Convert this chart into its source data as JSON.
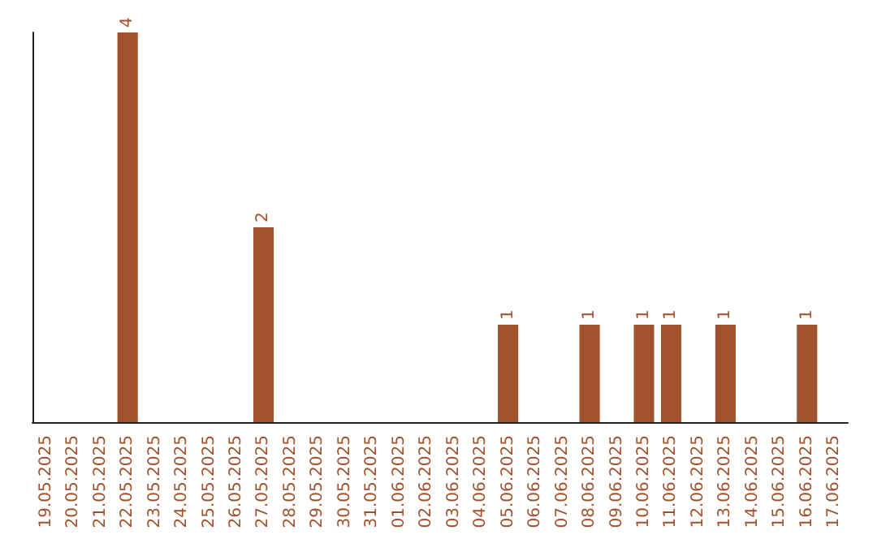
{
  "chart_data": {
    "type": "bar",
    "categories": [
      "19.05.2025",
      "20.05.2025",
      "21.05.2025",
      "22.05.2025",
      "23.05.2025",
      "24.05.2025",
      "25.05.2025",
      "26.05.2025",
      "27.05.2025",
      "28.05.2025",
      "29.05.2025",
      "30.05.2025",
      "31.05.2025",
      "01.06.2025",
      "02.06.2025",
      "03.06.2025",
      "04.06.2025",
      "05.06.2025",
      "06.06.2025",
      "07.06.2025",
      "08.06.2025",
      "09.06.2025",
      "10.06.2025",
      "11.06.2025",
      "12.06.2025",
      "13.06.2025",
      "14.06.2025",
      "15.06.2025",
      "16.06.2025",
      "17.06.2025"
    ],
    "values": [
      0,
      0,
      0,
      4,
      0,
      0,
      0,
      0,
      2,
      0,
      0,
      0,
      0,
      0,
      0,
      0,
      0,
      1,
      0,
      0,
      1,
      0,
      1,
      1,
      0,
      1,
      0,
      0,
      1,
      0
    ],
    "value_labels": [
      null,
      null,
      null,
      "4",
      null,
      null,
      null,
      null,
      "2",
      null,
      null,
      null,
      null,
      null,
      null,
      null,
      null,
      "1",
      null,
      null,
      "1",
      null,
      "1",
      "1",
      null,
      "1",
      null,
      null,
      "1",
      null
    ],
    "color": "#a0522d",
    "tick_labels": "x",
    "grid": false
  }
}
